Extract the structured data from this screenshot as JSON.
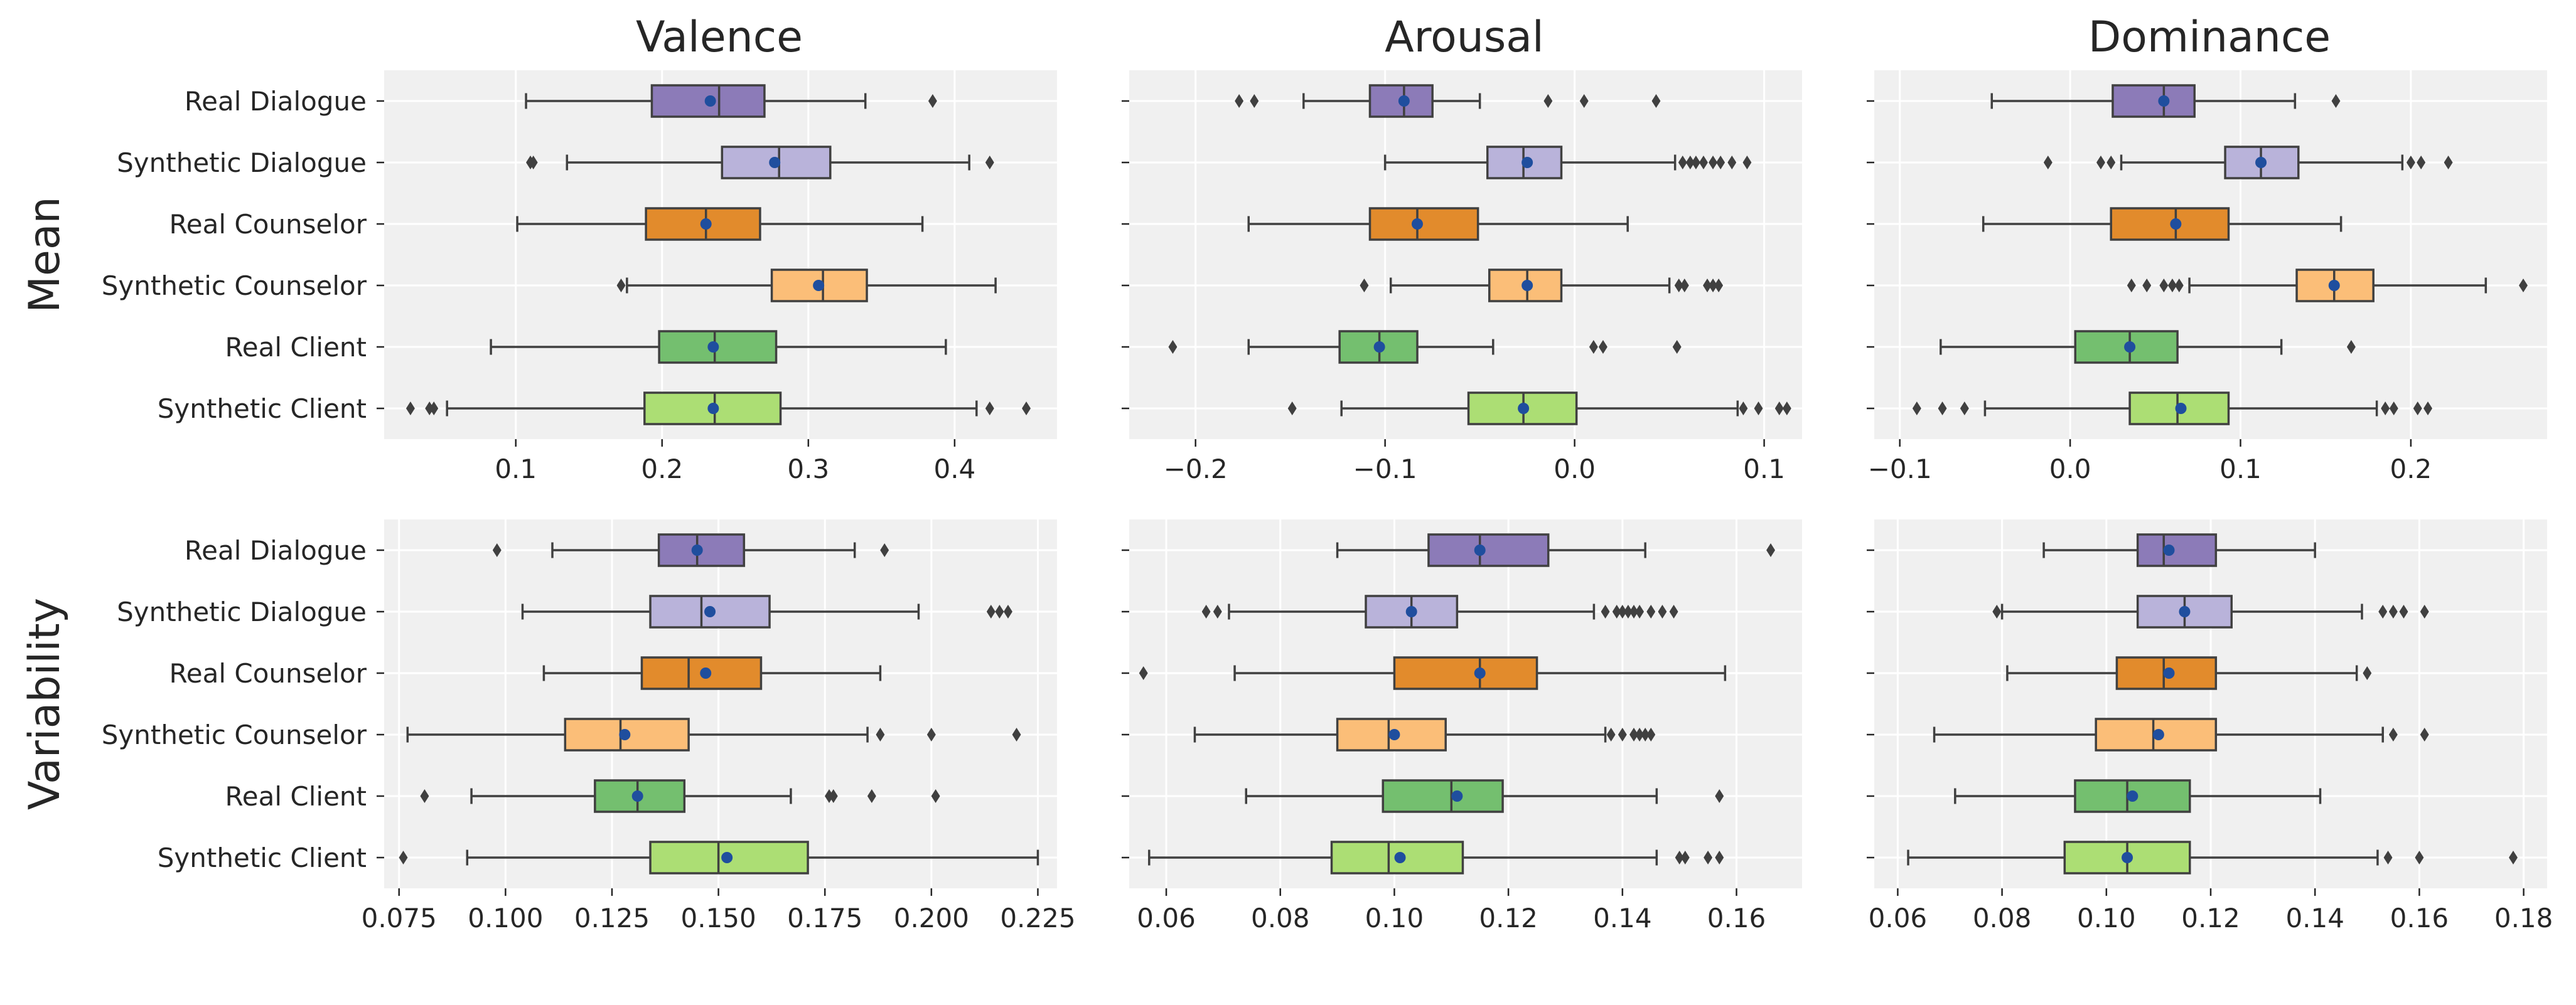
{
  "columns": [
    "Valence",
    "Arousal",
    "Dominance"
  ],
  "rows": [
    "Mean",
    "Variability"
  ],
  "categories": [
    "Real Dialogue",
    "Synthetic Dialogue",
    "Real Counselor",
    "Synthetic Counselor",
    "Real Client",
    "Synthetic Client"
  ],
  "colors": [
    "#8c7bb8",
    "#b9b3da",
    "#e28b2c",
    "#fbbe78",
    "#74bf6f",
    "#acde74"
  ],
  "styles": {
    "panel_bg": "#f0f0f0",
    "grid": "#ffffff",
    "line": "#404040",
    "mean_dot": "#1f4e9e",
    "outlier": "#404040"
  },
  "chart_data": [
    {
      "type": "boxplot",
      "row": "Mean",
      "column": "Valence",
      "title": "Valence",
      "ylabel": "Mean",
      "xlim": [
        0.01,
        0.47
      ],
      "xticks": [
        0.1,
        0.2,
        0.3,
        0.4
      ],
      "xtick_labels": [
        "0.1",
        "0.2",
        "0.3",
        "0.4"
      ],
      "series": [
        {
          "name": "Real Dialogue",
          "whisker_low": 0.107,
          "q1": 0.193,
          "median": 0.239,
          "q3": 0.27,
          "whisker_high": 0.339,
          "mean": 0.233,
          "outliers": [
            0.385
          ]
        },
        {
          "name": "Synthetic Dialogue",
          "whisker_low": 0.135,
          "q1": 0.241,
          "median": 0.28,
          "q3": 0.315,
          "whisker_high": 0.41,
          "mean": 0.277,
          "outliers": [
            0.11,
            0.112,
            0.424
          ]
        },
        {
          "name": "Real Counselor",
          "whisker_low": 0.101,
          "q1": 0.189,
          "median": 0.23,
          "q3": 0.267,
          "whisker_high": 0.378,
          "mean": 0.23,
          "outliers": []
        },
        {
          "name": "Synthetic Counselor",
          "whisker_low": 0.176,
          "q1": 0.275,
          "median": 0.31,
          "q3": 0.34,
          "whisker_high": 0.428,
          "mean": 0.307,
          "outliers": [
            0.172
          ]
        },
        {
          "name": "Real Client",
          "whisker_low": 0.083,
          "q1": 0.198,
          "median": 0.236,
          "q3": 0.278,
          "whisker_high": 0.394,
          "mean": 0.235,
          "outliers": []
        },
        {
          "name": "Synthetic Client",
          "whisker_low": 0.053,
          "q1": 0.188,
          "median": 0.236,
          "q3": 0.281,
          "whisker_high": 0.415,
          "mean": 0.235,
          "outliers": [
            0.028,
            0.041,
            0.044,
            0.424,
            0.449
          ]
        }
      ]
    },
    {
      "type": "boxplot",
      "row": "Mean",
      "column": "Arousal",
      "title": "Arousal",
      "ylabel": "",
      "xlim": [
        -0.235,
        0.12
      ],
      "xticks": [
        -0.2,
        -0.1,
        0.0,
        0.1
      ],
      "xtick_labels": [
        "−0.2",
        "−0.1",
        "0.0",
        "0.1"
      ],
      "series": [
        {
          "name": "Real Dialogue",
          "whisker_low": -0.143,
          "q1": -0.108,
          "median": -0.09,
          "q3": -0.075,
          "whisker_high": -0.05,
          "mean": -0.09,
          "outliers": [
            -0.177,
            -0.169,
            -0.014,
            0.005,
            0.043
          ]
        },
        {
          "name": "Synthetic Dialogue",
          "whisker_low": -0.1,
          "q1": -0.046,
          "median": -0.027,
          "q3": -0.007,
          "whisker_high": 0.053,
          "mean": -0.025,
          "outliers": [
            0.057,
            0.061,
            0.064,
            0.068,
            0.073,
            0.077,
            0.083,
            0.091
          ]
        },
        {
          "name": "Real Counselor",
          "whisker_low": -0.172,
          "q1": -0.108,
          "median": -0.083,
          "q3": -0.051,
          "whisker_high": 0.028,
          "mean": -0.083,
          "outliers": []
        },
        {
          "name": "Synthetic Counselor",
          "whisker_low": -0.097,
          "q1": -0.045,
          "median": -0.025,
          "q3": -0.007,
          "whisker_high": 0.05,
          "mean": -0.025,
          "outliers": [
            -0.111,
            0.055,
            0.058,
            0.07,
            0.073,
            0.076
          ]
        },
        {
          "name": "Real Client",
          "whisker_low": -0.172,
          "q1": -0.124,
          "median": -0.103,
          "q3": -0.083,
          "whisker_high": -0.043,
          "mean": -0.103,
          "outliers": [
            -0.212,
            0.01,
            0.015,
            0.054
          ]
        },
        {
          "name": "Synthetic Client",
          "whisker_low": -0.123,
          "q1": -0.056,
          "median": -0.027,
          "q3": 0.001,
          "whisker_high": 0.086,
          "mean": -0.027,
          "outliers": [
            -0.149,
            0.089,
            0.097,
            0.108,
            0.112
          ]
        }
      ]
    },
    {
      "type": "boxplot",
      "row": "Mean",
      "column": "Dominance",
      "title": "Dominance",
      "ylabel": "",
      "xlim": [
        -0.115,
        0.28
      ],
      "xticks": [
        -0.1,
        0.0,
        0.1,
        0.2
      ],
      "xtick_labels": [
        "−0.1",
        "0.0",
        "0.1",
        "0.2"
      ],
      "series": [
        {
          "name": "Real Dialogue",
          "whisker_low": -0.046,
          "q1": 0.025,
          "median": 0.055,
          "q3": 0.073,
          "whisker_high": 0.132,
          "mean": 0.055,
          "outliers": [
            0.156
          ]
        },
        {
          "name": "Synthetic Dialogue",
          "whisker_low": 0.03,
          "q1": 0.091,
          "median": 0.112,
          "q3": 0.134,
          "whisker_high": 0.195,
          "mean": 0.112,
          "outliers": [
            -0.013,
            0.018,
            0.024,
            0.2,
            0.206,
            0.222
          ]
        },
        {
          "name": "Real Counselor",
          "whisker_low": -0.051,
          "q1": 0.024,
          "median": 0.062,
          "q3": 0.093,
          "whisker_high": 0.159,
          "mean": 0.062,
          "outliers": []
        },
        {
          "name": "Synthetic Counselor",
          "whisker_low": 0.07,
          "q1": 0.133,
          "median": 0.155,
          "q3": 0.178,
          "whisker_high": 0.244,
          "mean": 0.155,
          "outliers": [
            0.036,
            0.045,
            0.055,
            0.06,
            0.064,
            0.266
          ]
        },
        {
          "name": "Real Client",
          "whisker_low": -0.076,
          "q1": 0.003,
          "median": 0.035,
          "q3": 0.063,
          "whisker_high": 0.124,
          "mean": 0.035,
          "outliers": [
            0.165
          ]
        },
        {
          "name": "Synthetic Client",
          "whisker_low": -0.05,
          "q1": 0.035,
          "median": 0.063,
          "q3": 0.093,
          "whisker_high": 0.18,
          "mean": 0.065,
          "outliers": [
            -0.09,
            -0.075,
            -0.062,
            0.185,
            0.19,
            0.204,
            0.21
          ]
        }
      ]
    },
    {
      "type": "boxplot",
      "row": "Variability",
      "column": "Valence",
      "title": "",
      "ylabel": "Variability",
      "xlim": [
        0.0715,
        0.2295
      ],
      "xticks": [
        0.075,
        0.1,
        0.125,
        0.15,
        0.175,
        0.2,
        0.225
      ],
      "xtick_labels": [
        "0.075",
        "0.100",
        "0.125",
        "0.150",
        "0.175",
        "0.200",
        "0.225"
      ],
      "series": [
        {
          "name": "Real Dialogue",
          "whisker_low": 0.111,
          "q1": 0.136,
          "median": 0.145,
          "q3": 0.156,
          "whisker_high": 0.182,
          "mean": 0.145,
          "outliers": [
            0.098,
            0.189
          ]
        },
        {
          "name": "Synthetic Dialogue",
          "whisker_low": 0.104,
          "q1": 0.134,
          "median": 0.146,
          "q3": 0.162,
          "whisker_high": 0.197,
          "mean": 0.148,
          "outliers": [
            0.214,
            0.216,
            0.218
          ]
        },
        {
          "name": "Real Counselor",
          "whisker_low": 0.109,
          "q1": 0.132,
          "median": 0.143,
          "q3": 0.16,
          "whisker_high": 0.188,
          "mean": 0.147,
          "outliers": []
        },
        {
          "name": "Synthetic Counselor",
          "whisker_low": 0.077,
          "q1": 0.114,
          "median": 0.127,
          "q3": 0.143,
          "whisker_high": 0.185,
          "mean": 0.128,
          "outliers": [
            0.188,
            0.2,
            0.22
          ]
        },
        {
          "name": "Real Client",
          "whisker_low": 0.092,
          "q1": 0.121,
          "median": 0.131,
          "q3": 0.142,
          "whisker_high": 0.167,
          "mean": 0.131,
          "outliers": [
            0.081,
            0.176,
            0.177,
            0.186,
            0.201
          ]
        },
        {
          "name": "Synthetic Client",
          "whisker_low": 0.091,
          "q1": 0.134,
          "median": 0.15,
          "q3": 0.171,
          "whisker_high": 0.225,
          "mean": 0.152,
          "outliers": [
            0.076
          ]
        }
      ]
    },
    {
      "type": "boxplot",
      "row": "Variability",
      "column": "Arousal",
      "title": "",
      "ylabel": "",
      "xlim": [
        0.0535,
        0.1715
      ],
      "xticks": [
        0.06,
        0.08,
        0.1,
        0.12,
        0.14,
        0.16
      ],
      "xtick_labels": [
        "0.06",
        "0.08",
        "0.10",
        "0.12",
        "0.14",
        "0.16"
      ],
      "series": [
        {
          "name": "Real Dialogue",
          "whisker_low": 0.09,
          "q1": 0.106,
          "median": 0.115,
          "q3": 0.127,
          "whisker_high": 0.144,
          "mean": 0.115,
          "outliers": [
            0.166
          ]
        },
        {
          "name": "Synthetic Dialogue",
          "whisker_low": 0.071,
          "q1": 0.095,
          "median": 0.103,
          "q3": 0.111,
          "whisker_high": 0.135,
          "mean": 0.103,
          "outliers": [
            0.067,
            0.069,
            0.137,
            0.139,
            0.14,
            0.141,
            0.142,
            0.143,
            0.145,
            0.147,
            0.149
          ]
        },
        {
          "name": "Real Counselor",
          "whisker_low": 0.072,
          "q1": 0.1,
          "median": 0.115,
          "q3": 0.125,
          "whisker_high": 0.158,
          "mean": 0.115,
          "outliers": [
            0.056
          ]
        },
        {
          "name": "Synthetic Counselor",
          "whisker_low": 0.065,
          "q1": 0.09,
          "median": 0.099,
          "q3": 0.109,
          "whisker_high": 0.137,
          "mean": 0.1,
          "outliers": [
            0.138,
            0.14,
            0.142,
            0.143,
            0.144,
            0.145
          ]
        },
        {
          "name": "Real Client",
          "whisker_low": 0.074,
          "q1": 0.098,
          "median": 0.11,
          "q3": 0.119,
          "whisker_high": 0.146,
          "mean": 0.111,
          "outliers": [
            0.157
          ]
        },
        {
          "name": "Synthetic Client",
          "whisker_low": 0.057,
          "q1": 0.089,
          "median": 0.099,
          "q3": 0.112,
          "whisker_high": 0.146,
          "mean": 0.101,
          "outliers": [
            0.15,
            0.151,
            0.155,
            0.157
          ]
        }
      ]
    },
    {
      "type": "boxplot",
      "row": "Variability",
      "column": "Dominance",
      "title": "",
      "ylabel": "",
      "xlim": [
        0.0555,
        0.1845
      ],
      "xticks": [
        0.06,
        0.08,
        0.1,
        0.12,
        0.14,
        0.16,
        0.18
      ],
      "xtick_labels": [
        "0.06",
        "0.08",
        "0.10",
        "0.12",
        "0.14",
        "0.16",
        "0.18"
      ],
      "series": [
        {
          "name": "Real Dialogue",
          "whisker_low": 0.088,
          "q1": 0.106,
          "median": 0.111,
          "q3": 0.121,
          "whisker_high": 0.14,
          "mean": 0.112,
          "outliers": []
        },
        {
          "name": "Synthetic Dialogue",
          "whisker_low": 0.08,
          "q1": 0.106,
          "median": 0.115,
          "q3": 0.124,
          "whisker_high": 0.149,
          "mean": 0.115,
          "outliers": [
            0.079,
            0.153,
            0.155,
            0.157,
            0.161
          ]
        },
        {
          "name": "Real Counselor",
          "whisker_low": 0.081,
          "q1": 0.102,
          "median": 0.111,
          "q3": 0.121,
          "whisker_high": 0.148,
          "mean": 0.112,
          "outliers": [
            0.15
          ]
        },
        {
          "name": "Synthetic Counselor",
          "whisker_low": 0.067,
          "q1": 0.098,
          "median": 0.109,
          "q3": 0.121,
          "whisker_high": 0.153,
          "mean": 0.11,
          "outliers": [
            0.155,
            0.161
          ]
        },
        {
          "name": "Real Client",
          "whisker_low": 0.071,
          "q1": 0.094,
          "median": 0.104,
          "q3": 0.116,
          "whisker_high": 0.141,
          "mean": 0.105,
          "outliers": []
        },
        {
          "name": "Synthetic Client",
          "whisker_low": 0.062,
          "q1": 0.092,
          "median": 0.104,
          "q3": 0.116,
          "whisker_high": 0.152,
          "mean": 0.104,
          "outliers": [
            0.154,
            0.16,
            0.178
          ]
        }
      ]
    }
  ]
}
